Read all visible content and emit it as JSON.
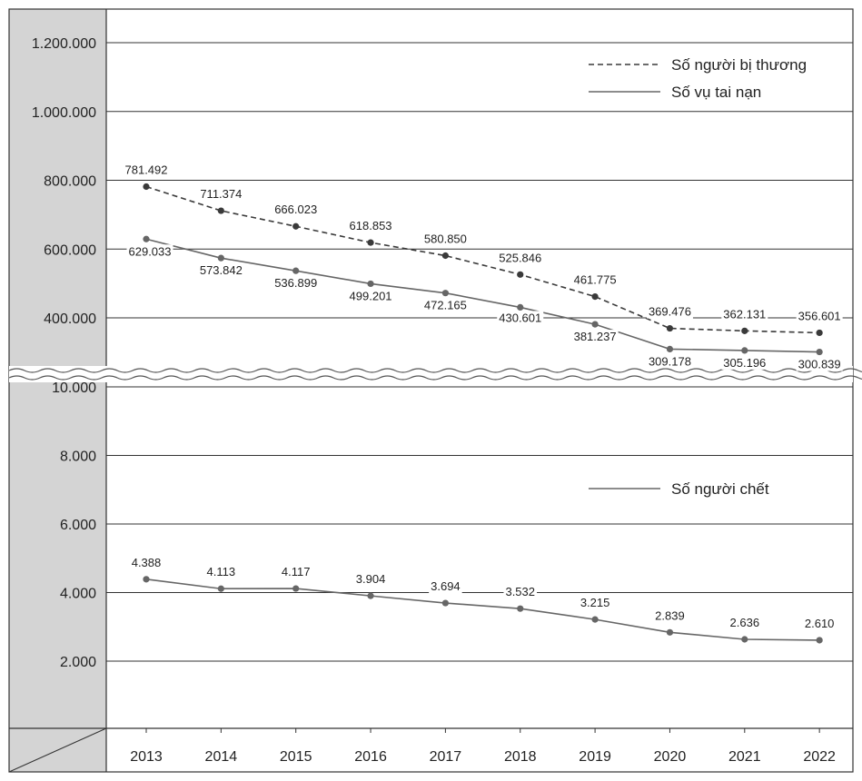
{
  "chart_data": [
    {
      "type": "line",
      "x": [
        "2013",
        "2014",
        "2015",
        "2016",
        "2017",
        "2018",
        "2019",
        "2020",
        "2021",
        "2022"
      ],
      "yticks": [
        "400.000",
        "600.000",
        "800.000",
        "1.000.000",
        "1.200.000"
      ],
      "ylim": [
        300000,
        1200000
      ],
      "series": [
        {
          "name": "Số người bị thương",
          "line_style": "dashed",
          "color": "#3a3a3a",
          "values": [
            781492,
            711374,
            666023,
            618853,
            580850,
            525846,
            461775,
            369476,
            362131,
            356601
          ],
          "labels": [
            "781.492",
            "711.374",
            "666.023",
            "618.853",
            "580.850",
            "525.846",
            "461.775",
            "369.476",
            "362.131",
            "356.601"
          ]
        },
        {
          "name": "Số vụ tai nạn",
          "line_style": "solid",
          "color": "#666666",
          "values": [
            629033,
            573842,
            536899,
            499201,
            472165,
            430601,
            381237,
            309178,
            305196,
            300839
          ],
          "labels": [
            "629.033",
            "573.842",
            "536.899",
            "499.201",
            "472.165",
            "430.601",
            "381.237",
            "309.178",
            "305.196",
            "300.839"
          ]
        }
      ],
      "legend_position": "top-right",
      "grid": true
    },
    {
      "type": "line",
      "x": [
        "2013",
        "2014",
        "2015",
        "2016",
        "2017",
        "2018",
        "2019",
        "2020",
        "2021",
        "2022"
      ],
      "yticks": [
        "2.000",
        "4.000",
        "6.000",
        "8.000",
        "10.000"
      ],
      "ylim": [
        0,
        10000
      ],
      "series": [
        {
          "name": "Số người chết",
          "line_style": "solid",
          "color": "#666666",
          "values": [
            4388,
            4113,
            4117,
            3904,
            3694,
            3532,
            3215,
            2839,
            2636,
            2610
          ],
          "labels": [
            "4.388",
            "4.113",
            "4.117",
            "3.904",
            "3.694",
            "3.532",
            "3.215",
            "2.839",
            "2.636",
            "2.610"
          ]
        }
      ],
      "legend_position": "right",
      "grid": true
    }
  ],
  "colors": {
    "axis_panel": "#d4d4d4",
    "gridline": "#333333",
    "break_wave": "#555555"
  }
}
